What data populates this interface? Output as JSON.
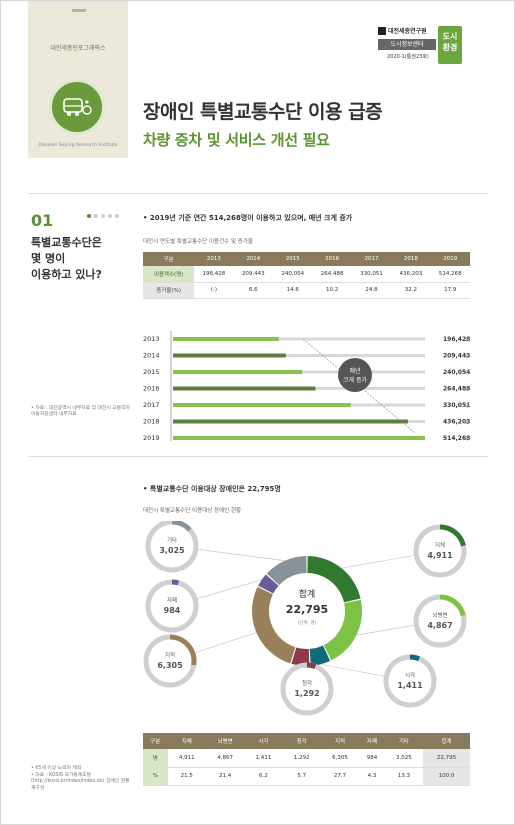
{
  "series_label": "대전세종인포그래픽스",
  "institute": "Daejeon Sejong Research Institute",
  "badge": {
    "org": "대전세종연구원",
    "center": "도시정보센터",
    "issue": "2020-1(통권23호)",
    "tag_line1": "도시",
    "tag_line2": "환경"
  },
  "title": "장애인 특별교통수단 이용 급증",
  "subtitle": "차량 증차 및 서비스 개선 필요",
  "section1": {
    "num": "01",
    "question_line1": "특별교통수단은",
    "question_line2": "몇 명이",
    "question_line3": "이용하고 있나?",
    "note": "• 자료 : 대전광역시 내부자료 및 대전시 교통약자이동지원센터 내부자료",
    "headline": "• 2019년 기준 연간 514,268명이 이용하고 있으며, 매년 크게 증가",
    "caption": "대전시 연도별 특별교통수단 이용건수 및 증가율",
    "table": {
      "header_label": "구분",
      "years": [
        "2013",
        "2014",
        "2015",
        "2016",
        "2017",
        "2018",
        "2019"
      ],
      "row1_label": "이용객수(명)",
      "row1": [
        "196,428",
        "209,443",
        "240,054",
        "264,488",
        "330,051",
        "436,203",
        "514,268"
      ],
      "row2_label": "증가율(%)",
      "row2": [
        "(-)",
        "6.6",
        "14.6",
        "10.2",
        "24.8",
        "32.2",
        "17.9"
      ]
    },
    "bar_note_line1": "매년",
    "bar_note_line2": "크게 증가",
    "unit": "명"
  },
  "chart_data": [
    {
      "type": "bar",
      "categories": [
        "2013",
        "2014",
        "2015",
        "2016",
        "2017",
        "2018",
        "2019"
      ],
      "values": [
        196428,
        209443,
        240054,
        264488,
        330051,
        436203,
        514268
      ],
      "title": "",
      "xlabel": "",
      "ylabel": "",
      "xlim": [
        0,
        600000
      ],
      "colors": {
        "bar_light": "#8cc152",
        "bar_dark": "#5d7f3d",
        "track": "#d8d8d8"
      }
    },
    {
      "type": "pie",
      "categories": [
        "지체",
        "뇌병변",
        "시각",
        "청각",
        "지적",
        "자폐",
        "기타"
      ],
      "values": [
        4911,
        4867,
        1411,
        1292,
        6305,
        984,
        3025
      ],
      "total": 22795,
      "colors": [
        "#2f7a2f",
        "#7cc244",
        "#0f6a7a",
        "#8f3a48",
        "#9a8058",
        "#6a5c99",
        "#8a9299"
      ]
    }
  ],
  "section2": {
    "headline": "• 특별교통수단 이용대상 장애인은 22,795명",
    "caption": "대전시 특별교통수단 이용대상 장애인 현황",
    "center_label": "합계",
    "center_value": "22,795",
    "center_unit": "(단위: 명)",
    "labels": [
      "지체",
      "뇌병변",
      "시각",
      "청각",
      "지적",
      "자폐",
      "기타"
    ],
    "counts": [
      "4,911",
      "4,867",
      "1,411",
      "1,292",
      "6,305",
      "984",
      "3,025"
    ],
    "table": {
      "header_label": "구분",
      "total_label": "합계",
      "row1_label": "명",
      "row1_total": "22,795",
      "row2_label": "%",
      "row2": [
        "21.5",
        "21.4",
        "6.2",
        "5.7",
        "27.7",
        "4.3",
        "13.3"
      ],
      "row2_total": "100.0"
    },
    "note_line1": "• 65세 이상 노약자 제외",
    "note_line2": "• 자료 : KOSIS 국가통계포털 (http://kosis.kr/index/index.do) 장애인 현황 재구성"
  }
}
